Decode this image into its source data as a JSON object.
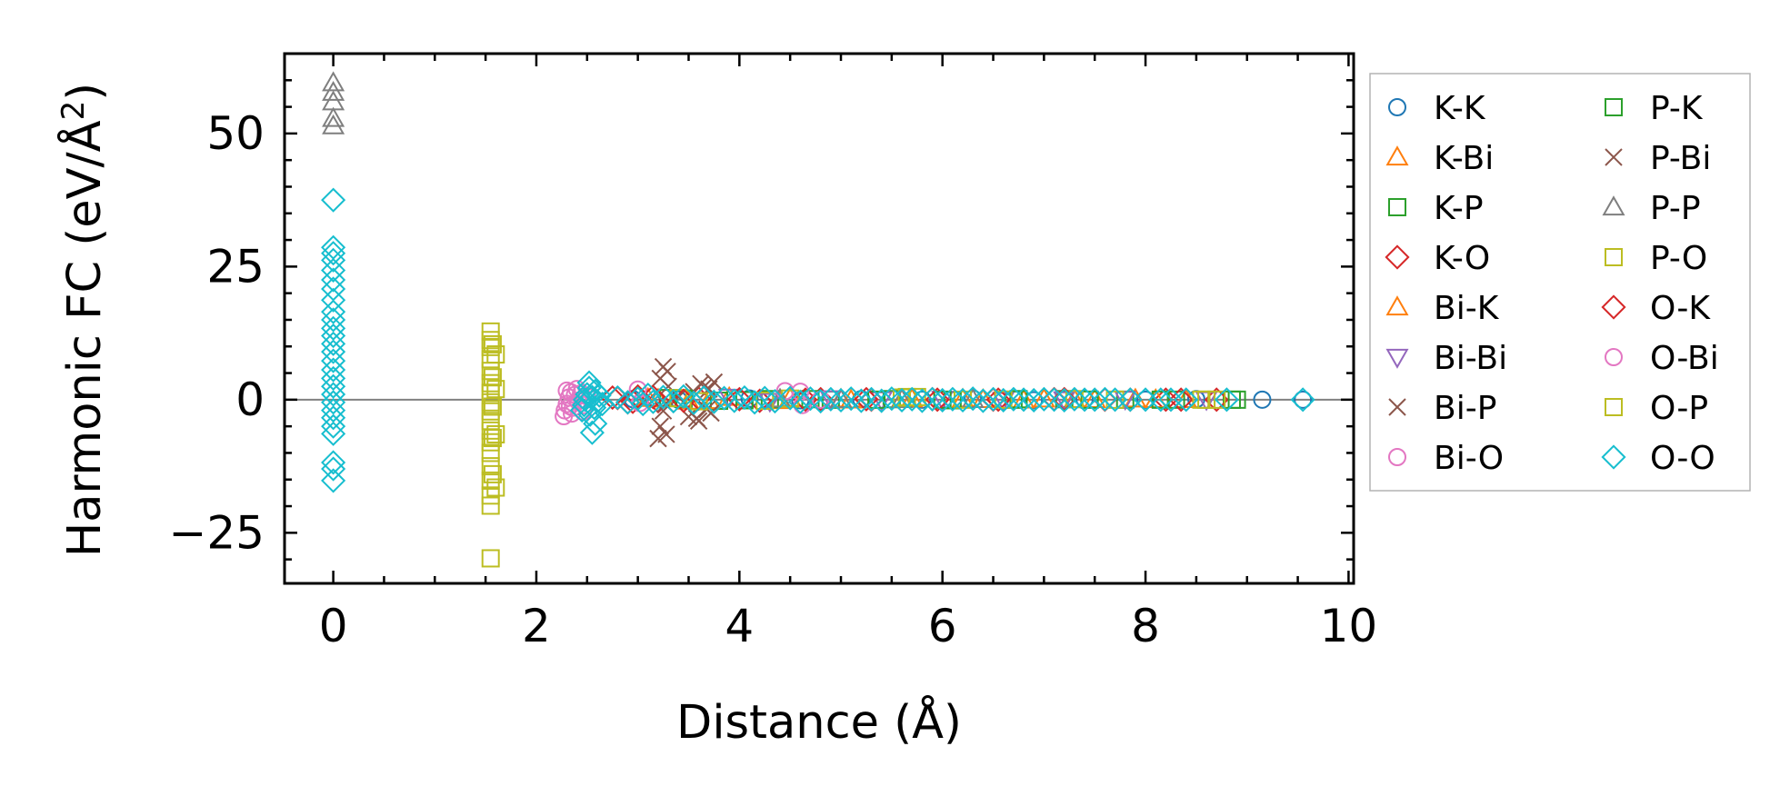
{
  "chart_data": {
    "type": "scatter",
    "title": "",
    "xlabel": "Distance (Å)",
    "ylabel_main": "Harmonic FC (eV/Å",
    "ylabel_sup": "2",
    "ylabel_tail": ")",
    "xlim": [
      -0.48,
      10.05
    ],
    "ylim": [
      -34.5,
      65
    ],
    "xticks": [
      0,
      2,
      4,
      6,
      8,
      10
    ],
    "xtick_labels": [
      "0",
      "2",
      "4",
      "6",
      "8",
      "10"
    ],
    "yticks": [
      -25,
      0,
      25,
      50
    ],
    "ytick_labels": [
      "−25",
      "0",
      "25",
      "50"
    ],
    "x_minor_step": 0.5,
    "y_minor_step": 5,
    "zero_line": true,
    "grid": false,
    "legend_position": "outside-right",
    "legend_columns": 2,
    "series": [
      {
        "name": "K-K",
        "marker": "circle",
        "color": "#1f77b4",
        "points": [
          [
            2.95,
            0.1
          ],
          [
            3.4,
            0.0
          ],
          [
            4.1,
            0.2
          ],
          [
            4.6,
            -0.1
          ],
          [
            5.2,
            0.1
          ],
          [
            5.8,
            0.0
          ],
          [
            6.3,
            0.2
          ],
          [
            6.9,
            -0.1
          ],
          [
            7.4,
            0.1
          ],
          [
            8.0,
            0.0
          ],
          [
            8.5,
            0.1
          ],
          [
            9.15,
            0.0
          ],
          [
            9.55,
            0.0
          ]
        ]
      },
      {
        "name": "K-Bi",
        "marker": "triangle-up",
        "color": "#ff7f0e",
        "points": [
          [
            3.1,
            0.2
          ],
          [
            3.5,
            -0.3
          ],
          [
            3.9,
            0.4
          ],
          [
            4.4,
            -0.2
          ],
          [
            5.0,
            0.1
          ],
          [
            5.6,
            0.0
          ],
          [
            6.2,
            0.1
          ],
          [
            6.8,
            -0.1
          ],
          [
            7.3,
            0.0
          ],
          [
            7.9,
            0.1
          ],
          [
            8.4,
            0.0
          ]
        ]
      },
      {
        "name": "K-P",
        "marker": "square",
        "color": "#2ca02c",
        "points": [
          [
            3.3,
            0.3
          ],
          [
            3.8,
            -0.2
          ],
          [
            4.3,
            0.1
          ],
          [
            4.9,
            0.0
          ],
          [
            5.5,
            0.1
          ],
          [
            6.1,
            -0.1
          ],
          [
            6.7,
            0.0
          ],
          [
            7.2,
            0.1
          ],
          [
            7.8,
            0.0
          ],
          [
            8.3,
            0.0
          ],
          [
            8.85,
            0.0
          ]
        ]
      },
      {
        "name": "K-O",
        "marker": "diamond",
        "color": "#d62728",
        "points": [
          [
            2.75,
            0.4
          ],
          [
            2.9,
            -0.5
          ],
          [
            3.0,
            0.6
          ],
          [
            3.2,
            -0.3
          ],
          [
            3.6,
            0.2
          ],
          [
            4.2,
            -0.2
          ],
          [
            4.8,
            0.1
          ],
          [
            5.3,
            0.0
          ],
          [
            5.9,
            0.1
          ],
          [
            6.5,
            0.0
          ],
          [
            7.1,
            0.1
          ],
          [
            7.6,
            0.0
          ],
          [
            8.2,
            0.0
          ],
          [
            8.7,
            0.0
          ]
        ]
      },
      {
        "name": "Bi-K",
        "marker": "triangle-up",
        "color": "#ff7f0e",
        "points": [
          [
            3.2,
            0.1
          ],
          [
            3.7,
            -0.2
          ],
          [
            4.5,
            0.2
          ],
          [
            5.1,
            -0.1
          ],
          [
            5.7,
            0.1
          ],
          [
            6.4,
            0.0
          ],
          [
            7.0,
            0.1
          ],
          [
            7.5,
            0.0
          ],
          [
            8.1,
            0.0
          ]
        ]
      },
      {
        "name": "Bi-Bi",
        "marker": "triangle-down",
        "color": "#9467bd",
        "points": [
          [
            3.9,
            0.5
          ],
          [
            4.3,
            -0.3
          ],
          [
            4.9,
            0.2
          ],
          [
            5.4,
            0.0
          ],
          [
            6.0,
            0.1
          ],
          [
            6.6,
            -0.1
          ],
          [
            7.2,
            0.0
          ],
          [
            7.8,
            0.1
          ],
          [
            8.6,
            0.0
          ]
        ]
      },
      {
        "name": "Bi-P",
        "marker": "x",
        "color": "#8c564b",
        "points": [
          [
            3.2,
            -7.3
          ],
          [
            3.22,
            -5.0
          ],
          [
            3.25,
            -2.1
          ],
          [
            3.27,
            -0.8
          ],
          [
            3.3,
            2.5
          ],
          [
            3.22,
            4.0
          ],
          [
            3.25,
            6.2
          ],
          [
            3.5,
            -3.2
          ],
          [
            3.55,
            1.5
          ],
          [
            3.6,
            -4.0
          ],
          [
            3.62,
            3.0
          ],
          [
            3.7,
            2.0
          ],
          [
            3.72,
            -2.5
          ],
          [
            3.75,
            3.3
          ],
          [
            3.4,
            0.5
          ]
        ]
      },
      {
        "name": "Bi-O",
        "marker": "circle",
        "color": "#e377c2",
        "points": [
          [
            2.27,
            -3.1
          ],
          [
            2.28,
            -2.0
          ],
          [
            2.3,
            -0.8
          ],
          [
            2.32,
            0.4
          ],
          [
            2.34,
            1.4
          ],
          [
            2.36,
            -1.5
          ],
          [
            2.38,
            0.9
          ],
          [
            2.41,
            -0.2
          ],
          [
            2.44,
            1.2
          ],
          [
            2.47,
            -1.0
          ],
          [
            2.35,
            -2.6
          ],
          [
            2.45,
            0.0
          ]
        ]
      },
      {
        "name": "P-K",
        "marker": "square",
        "color": "#2ca02c",
        "points": [
          [
            3.45,
            0.2
          ],
          [
            4.05,
            -0.1
          ],
          [
            4.7,
            0.1
          ],
          [
            5.35,
            0.0
          ],
          [
            6.0,
            0.0
          ],
          [
            6.75,
            0.1
          ],
          [
            7.45,
            0.0
          ],
          [
            8.15,
            0.0
          ],
          [
            8.9,
            0.0
          ]
        ]
      },
      {
        "name": "P-Bi",
        "marker": "x",
        "color": "#8c564b",
        "points": [
          [
            3.28,
            -6.5
          ],
          [
            3.29,
            5.3
          ],
          [
            3.58,
            -3.5
          ],
          [
            3.65,
            2.4
          ],
          [
            3.68,
            -1.8
          ]
        ]
      },
      {
        "name": "P-P",
        "marker": "triangle-up",
        "color": "#7f7f7f",
        "points": [
          [
            0.0,
            59.5
          ],
          [
            0.0,
            57.7
          ],
          [
            0.0,
            55.9
          ],
          [
            0.0,
            52.8
          ],
          [
            0.0,
            51.4
          ],
          [
            4.4,
            0.1
          ],
          [
            5.0,
            0.0
          ],
          [
            5.6,
            0.0
          ],
          [
            6.3,
            0.0
          ]
        ]
      },
      {
        "name": "P-O",
        "marker": "square",
        "color": "#bcbd22",
        "points": [
          [
            1.55,
            -29.8
          ],
          [
            1.55,
            -19.9
          ],
          [
            1.55,
            -18.0
          ],
          [
            1.55,
            -15.2
          ],
          [
            1.55,
            -12.5
          ],
          [
            1.55,
            -10.0
          ],
          [
            1.55,
            -8.0
          ],
          [
            1.55,
            -5.8
          ],
          [
            1.55,
            -4.0
          ],
          [
            1.55,
            -2.2
          ],
          [
            1.55,
            -0.5
          ],
          [
            1.55,
            1.3
          ],
          [
            1.55,
            3.1
          ],
          [
            1.55,
            5.4
          ],
          [
            1.55,
            7.6
          ],
          [
            1.55,
            9.9
          ],
          [
            1.55,
            11.2
          ],
          [
            1.55,
            12.8
          ],
          [
            1.6,
            -16.5
          ],
          [
            1.6,
            -6.5
          ],
          [
            1.6,
            2.0
          ],
          [
            1.6,
            8.5
          ],
          [
            3.4,
            0.3
          ],
          [
            4.25,
            -0.2
          ],
          [
            5.6,
            0.4
          ],
          [
            5.75,
            0.5
          ],
          [
            6.2,
            0.0
          ],
          [
            7.3,
            0.1
          ],
          [
            8.6,
            0.0
          ],
          [
            8.7,
            0.0
          ]
        ]
      },
      {
        "name": "O-K",
        "marker": "diamond",
        "color": "#d62728",
        "points": [
          [
            2.8,
            0.3
          ],
          [
            2.95,
            -0.4
          ],
          [
            3.15,
            0.5
          ],
          [
            3.45,
            -0.2
          ],
          [
            4.0,
            0.1
          ],
          [
            4.65,
            0.0
          ],
          [
            5.25,
            0.1
          ],
          [
            5.95,
            0.0
          ],
          [
            6.55,
            0.0
          ],
          [
            7.2,
            0.1
          ],
          [
            7.85,
            0.0
          ],
          [
            8.35,
            0.0
          ]
        ]
      },
      {
        "name": "O-Bi",
        "marker": "circle",
        "color": "#e377c2",
        "points": [
          [
            2.3,
            1.7
          ],
          [
            2.33,
            -1.2
          ],
          [
            2.4,
            2.0
          ],
          [
            2.46,
            -2.2
          ],
          [
            2.5,
            0.6
          ],
          [
            3.0,
            1.9
          ],
          [
            3.02,
            -0.6
          ],
          [
            4.45,
            1.6
          ],
          [
            4.6,
            1.5
          ],
          [
            4.62,
            -1.0
          ],
          [
            4.8,
            0.0
          ]
        ]
      },
      {
        "name": "O-P",
        "marker": "square",
        "color": "#bcbd22",
        "points": [
          [
            1.57,
            -14.0
          ],
          [
            1.57,
            -7.2
          ],
          [
            1.57,
            -1.3
          ],
          [
            1.57,
            4.2
          ],
          [
            1.57,
            10.4
          ],
          [
            3.6,
            -0.3
          ],
          [
            4.5,
            0.2
          ],
          [
            5.65,
            0.5
          ],
          [
            6.6,
            0.0
          ],
          [
            7.7,
            0.0
          ],
          [
            8.55,
            0.0
          ]
        ]
      },
      {
        "name": "O-O",
        "marker": "diamond",
        "color": "#17becf",
        "points": [
          [
            0.0,
            37.5
          ],
          [
            0.0,
            28.6
          ],
          [
            0.0,
            27.5
          ],
          [
            0.0,
            26.2
          ],
          [
            0.0,
            24.3
          ],
          [
            0.0,
            22.5
          ],
          [
            0.0,
            20.8
          ],
          [
            0.0,
            18.7
          ],
          [
            0.0,
            16.5
          ],
          [
            0.0,
            15.0
          ],
          [
            0.0,
            13.4
          ],
          [
            0.0,
            12.0
          ],
          [
            0.0,
            10.5
          ],
          [
            0.0,
            9.0
          ],
          [
            0.0,
            7.3
          ],
          [
            0.0,
            5.6
          ],
          [
            0.0,
            4.0
          ],
          [
            0.0,
            2.5
          ],
          [
            0.0,
            1.0
          ],
          [
            0.0,
            -0.5
          ],
          [
            0.0,
            -2.0
          ],
          [
            0.0,
            -3.4
          ],
          [
            0.0,
            -5.0
          ],
          [
            0.0,
            -6.4
          ],
          [
            0.0,
            -11.8
          ],
          [
            0.0,
            -13.0
          ],
          [
            0.0,
            -15.2
          ],
          [
            2.45,
            -2.0
          ],
          [
            2.47,
            -1.0
          ],
          [
            2.48,
            0.0
          ],
          [
            2.5,
            1.0
          ],
          [
            2.52,
            2.2
          ],
          [
            2.53,
            -2.8
          ],
          [
            2.55,
            0.5
          ],
          [
            2.57,
            -1.5
          ],
          [
            2.58,
            1.6
          ],
          [
            2.6,
            -0.3
          ],
          [
            2.62,
            0.8
          ],
          [
            2.65,
            -0.8
          ],
          [
            2.55,
            -6.2
          ],
          [
            2.58,
            -4.5
          ],
          [
            2.52,
            3.2
          ],
          [
            2.8,
            0.4
          ],
          [
            2.9,
            -0.5
          ],
          [
            3.0,
            0.2
          ],
          [
            3.05,
            -0.8
          ],
          [
            3.1,
            0.9
          ],
          [
            3.15,
            -0.4
          ],
          [
            3.25,
            0.5
          ],
          [
            3.35,
            -0.3
          ],
          [
            3.45,
            0.6
          ],
          [
            3.55,
            -0.6
          ],
          [
            3.65,
            0.4
          ],
          [
            3.75,
            -0.4
          ],
          [
            3.85,
            0.3
          ],
          [
            3.95,
            -0.2
          ],
          [
            4.05,
            0.4
          ],
          [
            4.15,
            -0.5
          ],
          [
            4.25,
            0.3
          ],
          [
            4.35,
            -0.3
          ],
          [
            4.5,
            0.3
          ],
          [
            4.6,
            -0.4
          ],
          [
            4.7,
            0.2
          ],
          [
            4.8,
            -0.3
          ],
          [
            4.9,
            0.1
          ],
          [
            5.0,
            -0.1
          ],
          [
            5.1,
            0.2
          ],
          [
            5.2,
            -0.2
          ],
          [
            5.3,
            0.1
          ],
          [
            5.4,
            -0.2
          ],
          [
            5.5,
            0.2
          ],
          [
            5.6,
            -0.1
          ],
          [
            5.7,
            0.1
          ],
          [
            5.8,
            -0.2
          ],
          [
            5.9,
            0.1
          ],
          [
            6.0,
            -0.1
          ],
          [
            6.1,
            0.1
          ],
          [
            6.2,
            -0.1
          ],
          [
            6.3,
            0.2
          ],
          [
            6.4,
            -0.2
          ],
          [
            6.5,
            0.1
          ],
          [
            6.6,
            -0.1
          ],
          [
            6.7,
            0.1
          ],
          [
            6.8,
            0.0
          ],
          [
            6.9,
            -0.1
          ],
          [
            7.0,
            0.1
          ],
          [
            7.1,
            0.0
          ],
          [
            7.2,
            -0.1
          ],
          [
            7.3,
            0.1
          ],
          [
            7.4,
            0.0
          ],
          [
            7.5,
            0.0
          ],
          [
            7.6,
            0.1
          ],
          [
            7.7,
            0.0
          ],
          [
            7.85,
            0.0
          ],
          [
            8.0,
            0.0
          ],
          [
            8.15,
            0.0
          ],
          [
            8.25,
            0.0
          ],
          [
            8.4,
            0.0
          ],
          [
            8.8,
            0.0
          ],
          [
            9.55,
            0.0
          ]
        ]
      }
    ]
  }
}
